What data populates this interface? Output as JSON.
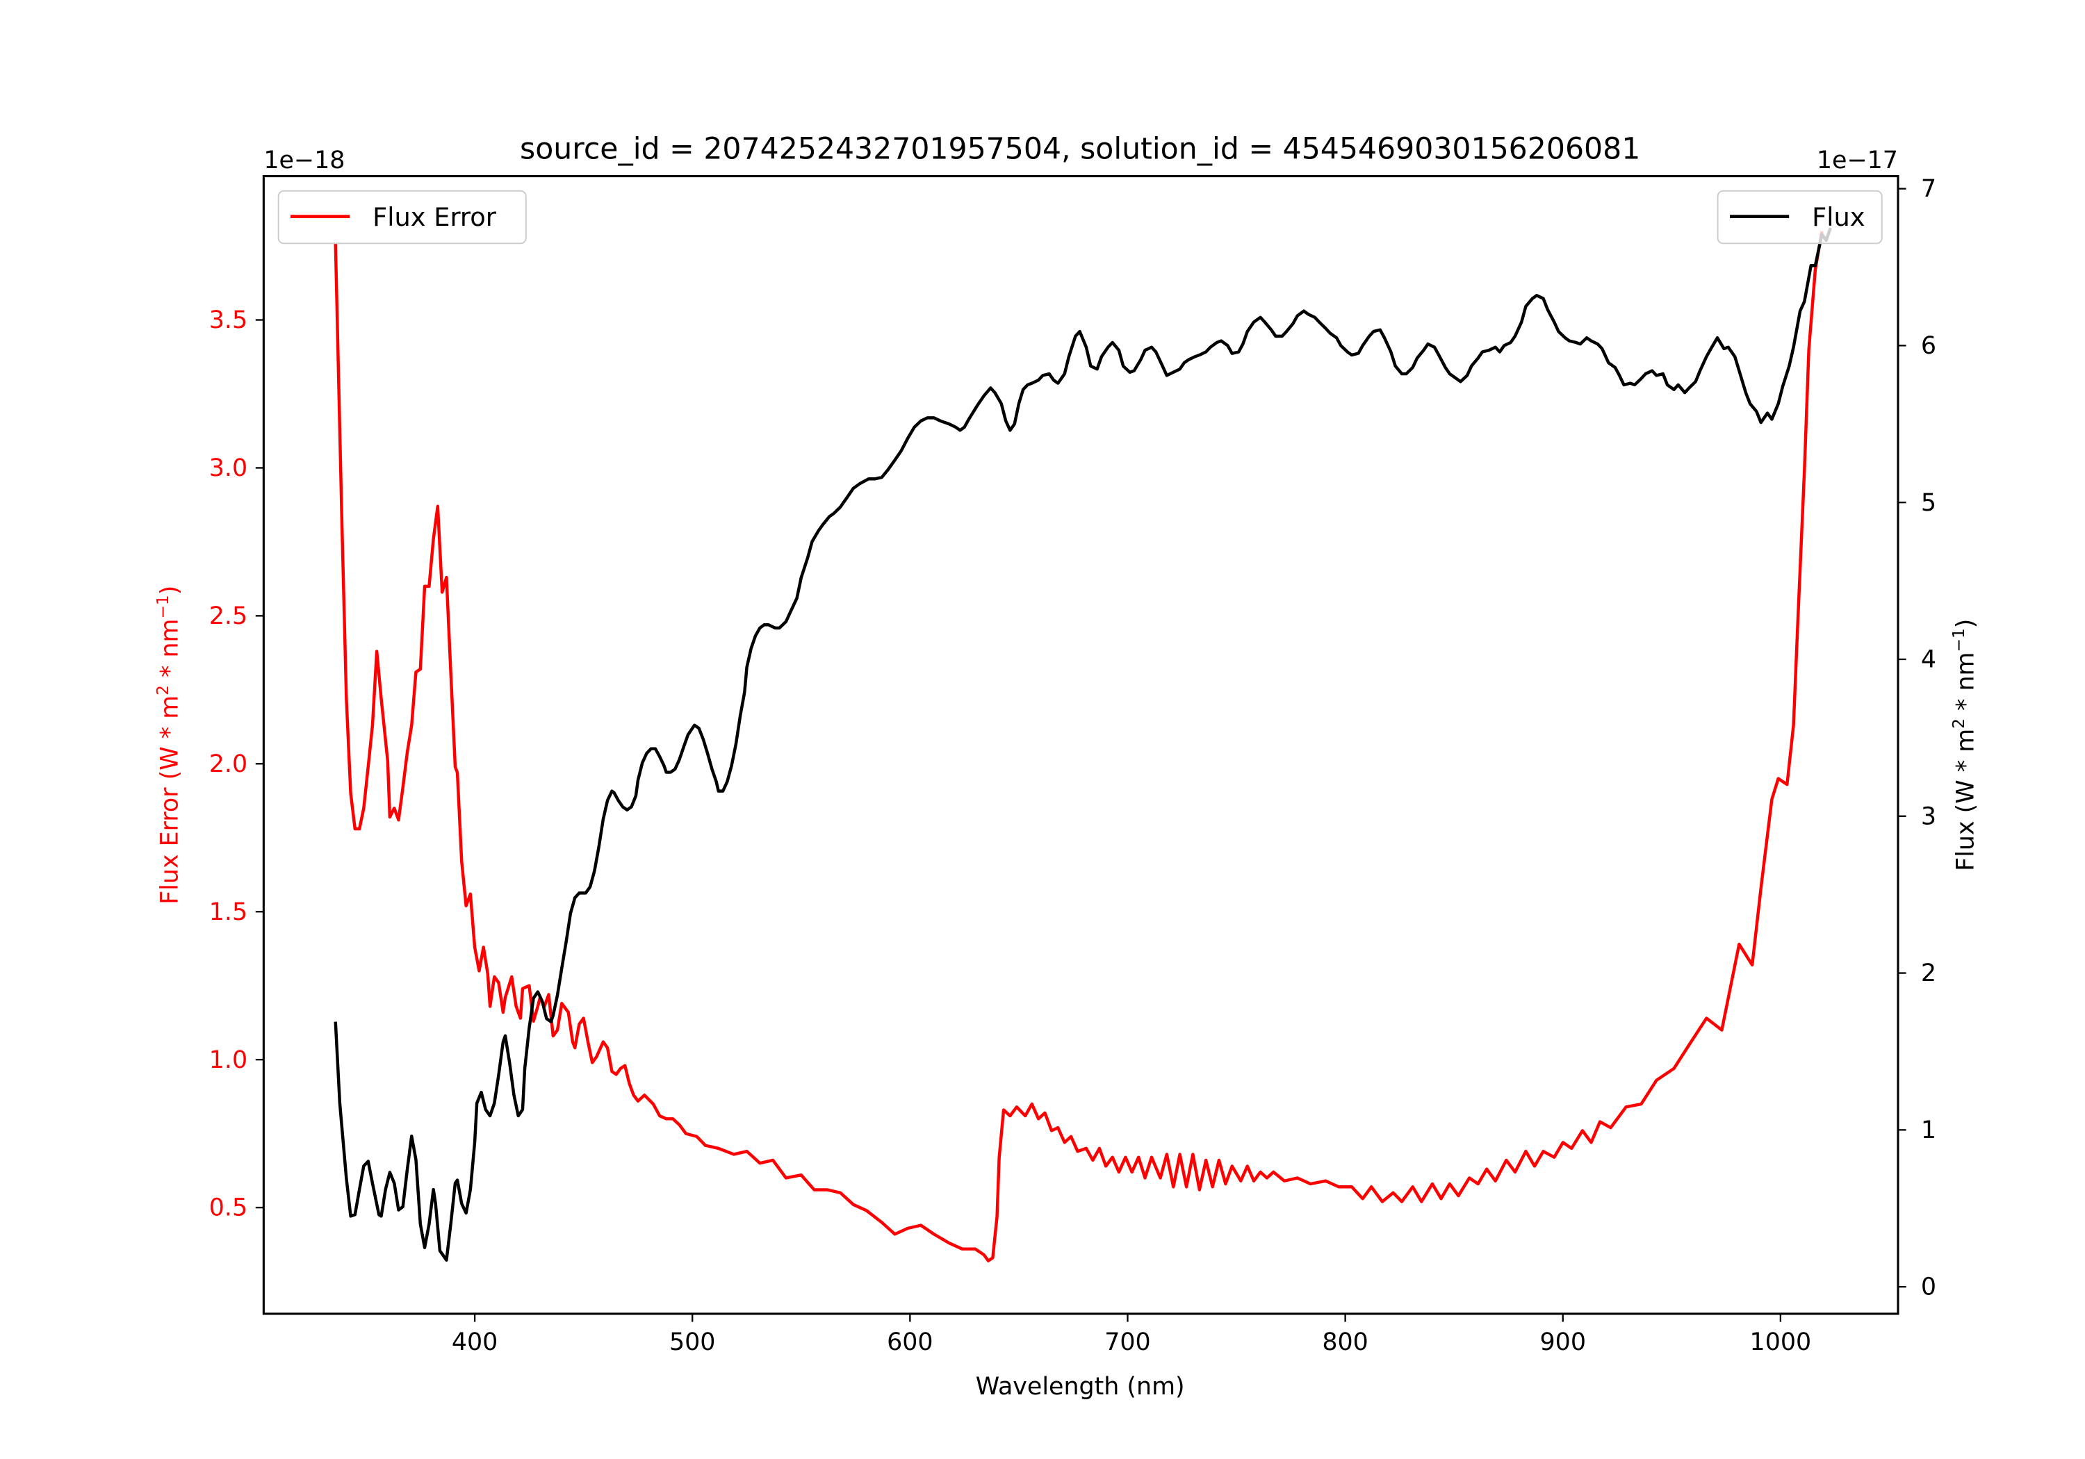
{
  "chart_data": {
    "type": "line",
    "title": "source_id = 2074252432701957504, solution_id = 4545469030156206081",
    "xlabel": "Wavelength (nm)",
    "xlim": [
      303,
      1054
    ],
    "xticks": [
      400,
      500,
      600,
      700,
      800,
      900,
      1000
    ],
    "left_axis": {
      "label": {
        "prefix": "Flux Error (W * m",
        "sup1": "2",
        "mid": " * nm",
        "sup2": "−1",
        "suffix": ")"
      },
      "offset_text": "1e−18",
      "ylim": [
        0.141,
        3.986
      ],
      "ticks": [
        0.5,
        1.0,
        1.5,
        2.0,
        2.5,
        3.0,
        3.5
      ],
      "tick_labels": [
        "0.5",
        "1.0",
        "1.5",
        "2.0",
        "2.5",
        "3.0",
        "3.5"
      ],
      "color": "#ff0000"
    },
    "right_axis": {
      "label": {
        "prefix": "Flux (W * m",
        "sup1": "2",
        "mid": " * nm",
        "sup2": "−1",
        "suffix": ")"
      },
      "offset_text": "1e−17",
      "ylim": [
        -0.172,
        7.08
      ],
      "ticks": [
        0,
        1,
        2,
        3,
        4,
        5,
        6,
        7
      ],
      "tick_labels": [
        "0",
        "1",
        "2",
        "3",
        "4",
        "5",
        "6",
        "7"
      ],
      "color": "#000000"
    },
    "legend": [
      {
        "label": "Flux Error",
        "color": "#ff0000",
        "placement": "upper-left"
      },
      {
        "label": "Flux",
        "color": "#000000",
        "placement": "upper-right"
      }
    ],
    "series": [
      {
        "name": "Flux Error",
        "axis": "left",
        "color": "#ff0000",
        "x": [
          336,
          339,
          341,
          343,
          345,
          347,
          349,
          351,
          353,
          355,
          357,
          360,
          361,
          363,
          365,
          367,
          369,
          371,
          373,
          375,
          377,
          379,
          381,
          383,
          385,
          387,
          389,
          391,
          392,
          394,
          396,
          398,
          400,
          402,
          404,
          406,
          407,
          409,
          411,
          413,
          414,
          417,
          419,
          421,
          422,
          425,
          427,
          429,
          430,
          432,
          434,
          436,
          438,
          440,
          443,
          445,
          446,
          448,
          450,
          452,
          454,
          456,
          459,
          461,
          463,
          465,
          467,
          469,
          471,
          473,
          475,
          478,
          482,
          485,
          488,
          491,
          494,
          497,
          502,
          506,
          512,
          519,
          525,
          531,
          537,
          543,
          550,
          556,
          562,
          568,
          574,
          580,
          587,
          593,
          599,
          605,
          611,
          618,
          624,
          630,
          634,
          636,
          638,
          640,
          641,
          643,
          646,
          649,
          653,
          656,
          659,
          662,
          665,
          668,
          671,
          674,
          677,
          681,
          684,
          687,
          690,
          693,
          696,
          699,
          702,
          705,
          708,
          711,
          715,
          718,
          721,
          724,
          727,
          730,
          733,
          736,
          739,
          742,
          745,
          748,
          752,
          755,
          758,
          761,
          764,
          767,
          772,
          778,
          784,
          791,
          797,
          803,
          808,
          812,
          817,
          822,
          826,
          831,
          835,
          840,
          844,
          848,
          852,
          857,
          861,
          865,
          869,
          874,
          878,
          883,
          887,
          891,
          896,
          900,
          904,
          909,
          913,
          917,
          922,
          929,
          936,
          943,
          951,
          958,
          966,
          973,
          981,
          987,
          991,
          996,
          999,
          1003,
          1006,
          1008,
          1011,
          1013,
          1016,
          1019
        ],
        "y": [
          3.76,
          2.81,
          2.22,
          1.9,
          1.78,
          1.78,
          1.85,
          1.99,
          2.13,
          2.38,
          2.22,
          2.01,
          1.82,
          1.85,
          1.81,
          1.92,
          2.04,
          2.13,
          2.31,
          2.32,
          2.6,
          2.6,
          2.76,
          2.87,
          2.58,
          2.63,
          2.31,
          1.99,
          1.97,
          1.67,
          1.52,
          1.56,
          1.38,
          1.3,
          1.38,
          1.29,
          1.18,
          1.28,
          1.26,
          1.16,
          1.21,
          1.28,
          1.18,
          1.14,
          1.24,
          1.25,
          1.13,
          1.18,
          1.21,
          1.18,
          1.22,
          1.08,
          1.1,
          1.19,
          1.16,
          1.06,
          1.04,
          1.12,
          1.14,
          1.06,
          0.99,
          1.01,
          1.06,
          1.04,
          0.96,
          0.95,
          0.97,
          0.98,
          0.92,
          0.88,
          0.86,
          0.88,
          0.85,
          0.81,
          0.8,
          0.8,
          0.78,
          0.75,
          0.74,
          0.71,
          0.7,
          0.68,
          0.69,
          0.65,
          0.66,
          0.6,
          0.61,
          0.56,
          0.56,
          0.55,
          0.51,
          0.49,
          0.45,
          0.41,
          0.43,
          0.44,
          0.41,
          0.38,
          0.36,
          0.36,
          0.34,
          0.32,
          0.33,
          0.47,
          0.67,
          0.83,
          0.81,
          0.84,
          0.81,
          0.85,
          0.8,
          0.82,
          0.76,
          0.77,
          0.72,
          0.74,
          0.69,
          0.7,
          0.66,
          0.7,
          0.64,
          0.67,
          0.62,
          0.67,
          0.62,
          0.67,
          0.6,
          0.67,
          0.6,
          0.68,
          0.57,
          0.68,
          0.57,
          0.68,
          0.56,
          0.66,
          0.57,
          0.66,
          0.58,
          0.64,
          0.59,
          0.64,
          0.59,
          0.62,
          0.6,
          0.62,
          0.59,
          0.6,
          0.58,
          0.59,
          0.57,
          0.57,
          0.53,
          0.57,
          0.52,
          0.55,
          0.52,
          0.57,
          0.52,
          0.58,
          0.53,
          0.58,
          0.54,
          0.6,
          0.58,
          0.63,
          0.59,
          0.66,
          0.62,
          0.69,
          0.64,
          0.69,
          0.67,
          0.72,
          0.7,
          0.76,
          0.72,
          0.79,
          0.77,
          0.84,
          0.85,
          0.93,
          0.97,
          1.05,
          1.14,
          1.1,
          1.39,
          1.32,
          1.58,
          1.88,
          1.95,
          1.93,
          2.13,
          2.49,
          2.99,
          3.4,
          3.67,
          3.8
        ]
      },
      {
        "name": "Flux",
        "axis": "right",
        "color": "#000000",
        "x": [
          336,
          338,
          341,
          343,
          345,
          347,
          349,
          351,
          353,
          356,
          357,
          359,
          361,
          363,
          365,
          367,
          369,
          371,
          373,
          375,
          377,
          379,
          381,
          382,
          384,
          387,
          389,
          391,
          392,
          394,
          396,
          398,
          400,
          401,
          403,
          405,
          407,
          409,
          411,
          413,
          414,
          416,
          418,
          420,
          422,
          423,
          425,
          427,
          429,
          431,
          433,
          435,
          436,
          438,
          440,
          442,
          444,
          446,
          448,
          450,
          451,
          453,
          455,
          457,
          459,
          461,
          463,
          464,
          466,
          468,
          470,
          472,
          474,
          475,
          477,
          479,
          481,
          483,
          485,
          487,
          488,
          490,
          492,
          494,
          496,
          498,
          500,
          501,
          503,
          505,
          507,
          509,
          511,
          512,
          514,
          516,
          518,
          520,
          522,
          524,
          525,
          527,
          529,
          531,
          533,
          535,
          538,
          540,
          543,
          545,
          548,
          550,
          553,
          555,
          558,
          560,
          563,
          565,
          568,
          571,
          574,
          577,
          581,
          584,
          587,
          590,
          593,
          596,
          599,
          602,
          605,
          608,
          611,
          614,
          618,
          621,
          623,
          625,
          627,
          631,
          634,
          637,
          639,
          642,
          644,
          646,
          648,
          650,
          652,
          654,
          656,
          659,
          661,
          664,
          666,
          668,
          671,
          673,
          676,
          678,
          681,
          683,
          686,
          688,
          691,
          693,
          696,
          698,
          701,
          703,
          706,
          708,
          711,
          713,
          716,
          718,
          721,
          724,
          726,
          728,
          731,
          733,
          736,
          738,
          741,
          743,
          746,
          748,
          751,
          753,
          755,
          758,
          761,
          763,
          766,
          768,
          771,
          773,
          776,
          778,
          781,
          783,
          786,
          788,
          791,
          793,
          796,
          798,
          801,
          803,
          806,
          808,
          811,
          813,
          816,
          818,
          821,
          823,
          826,
          828,
          831,
          833,
          836,
          838,
          841,
          843,
          846,
          848,
          851,
          853,
          856,
          858,
          861,
          863,
          866,
          869,
          871,
          873,
          876,
          878,
          881,
          883,
          886,
          888,
          891,
          893,
          896,
          898,
          901,
          903,
          906,
          908,
          911,
          913,
          916,
          918,
          921,
          924,
          926,
          928,
          931,
          933,
          936,
          938,
          941,
          943,
          946,
          948,
          951,
          953,
          956,
          958,
          961,
          963,
          966,
          968,
          971,
          974,
          976,
          979,
          981,
          984,
          986,
          989,
          991,
          994,
          996,
          999,
          1001,
          1004,
          1006,
          1009,
          1011,
          1014,
          1016,
          1019,
          1021,
          1023
        ],
        "y": [
          1.69,
          1.17,
          0.69,
          0.45,
          0.46,
          0.62,
          0.77,
          0.8,
          0.66,
          0.46,
          0.45,
          0.62,
          0.73,
          0.66,
          0.49,
          0.51,
          0.75,
          0.96,
          0.81,
          0.4,
          0.25,
          0.4,
          0.62,
          0.53,
          0.23,
          0.17,
          0.4,
          0.66,
          0.68,
          0.53,
          0.47,
          0.62,
          0.92,
          1.17,
          1.24,
          1.13,
          1.09,
          1.17,
          1.35,
          1.56,
          1.6,
          1.43,
          1.22,
          1.09,
          1.13,
          1.39,
          1.65,
          1.84,
          1.88,
          1.82,
          1.71,
          1.69,
          1.73,
          1.86,
          2.03,
          2.2,
          2.38,
          2.48,
          2.51,
          2.51,
          2.51,
          2.55,
          2.65,
          2.8,
          2.98,
          3.1,
          3.16,
          3.15,
          3.1,
          3.06,
          3.04,
          3.06,
          3.13,
          3.23,
          3.34,
          3.4,
          3.43,
          3.43,
          3.38,
          3.32,
          3.28,
          3.28,
          3.3,
          3.36,
          3.44,
          3.52,
          3.56,
          3.58,
          3.56,
          3.49,
          3.4,
          3.3,
          3.22,
          3.16,
          3.16,
          3.22,
          3.32,
          3.46,
          3.64,
          3.79,
          3.95,
          4.07,
          4.15,
          4.2,
          4.22,
          4.22,
          4.2,
          4.2,
          4.24,
          4.3,
          4.39,
          4.52,
          4.65,
          4.75,
          4.82,
          4.86,
          4.91,
          4.93,
          4.97,
          5.03,
          5.09,
          5.12,
          5.15,
          5.15,
          5.16,
          5.21,
          5.27,
          5.33,
          5.41,
          5.48,
          5.52,
          5.54,
          5.54,
          5.52,
          5.5,
          5.48,
          5.46,
          5.48,
          5.53,
          5.62,
          5.68,
          5.73,
          5.7,
          5.63,
          5.52,
          5.46,
          5.5,
          5.63,
          5.72,
          5.75,
          5.76,
          5.78,
          5.81,
          5.82,
          5.78,
          5.76,
          5.82,
          5.93,
          6.06,
          6.09,
          5.99,
          5.87,
          5.85,
          5.93,
          5.99,
          6.02,
          5.97,
          5.87,
          5.83,
          5.84,
          5.91,
          5.97,
          5.99,
          5.96,
          5.87,
          5.81,
          5.83,
          5.85,
          5.89,
          5.91,
          5.93,
          5.94,
          5.96,
          5.99,
          6.02,
          6.03,
          6.0,
          5.95,
          5.96,
          6.01,
          6.09,
          6.15,
          6.18,
          6.15,
          6.1,
          6.06,
          6.06,
          6.09,
          6.14,
          6.19,
          6.22,
          6.2,
          6.18,
          6.15,
          6.11,
          6.08,
          6.05,
          6.0,
          5.96,
          5.94,
          5.95,
          6.0,
          6.06,
          6.09,
          6.1,
          6.05,
          5.96,
          5.87,
          5.82,
          5.82,
          5.86,
          5.92,
          5.97,
          6.01,
          5.99,
          5.94,
          5.86,
          5.82,
          5.79,
          5.77,
          5.81,
          5.87,
          5.92,
          5.96,
          5.97,
          5.99,
          5.96,
          6.0,
          6.02,
          6.06,
          6.15,
          6.25,
          6.3,
          6.32,
          6.3,
          6.23,
          6.15,
          6.09,
          6.05,
          6.03,
          6.02,
          6.01,
          6.05,
          6.03,
          6.01,
          5.98,
          5.89,
          5.86,
          5.81,
          5.75,
          5.76,
          5.75,
          5.79,
          5.82,
          5.84,
          5.81,
          5.82,
          5.75,
          5.72,
          5.75,
          5.7,
          5.73,
          5.77,
          5.84,
          5.93,
          5.98,
          6.05,
          5.98,
          5.99,
          5.93,
          5.84,
          5.7,
          5.63,
          5.58,
          5.51,
          5.57,
          5.53,
          5.63,
          5.74,
          5.87,
          5.99,
          6.22,
          6.28,
          6.51,
          6.51,
          6.71,
          6.67,
          6.75
        ]
      }
    ]
  }
}
